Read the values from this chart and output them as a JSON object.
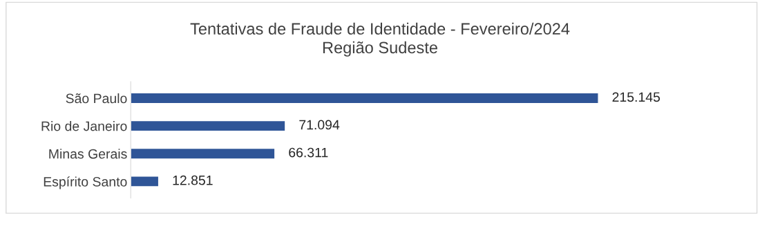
{
  "chart_data": {
    "type": "bar",
    "orientation": "horizontal",
    "title": "Tentativas de Fraude de Identidade - Fevereiro/2024\nRegião Sudeste",
    "categories": [
      "São Paulo",
      "Rio de Janeiro",
      "Minas Gerais",
      "Espírito Santo"
    ],
    "values": [
      215145,
      71094,
      66311,
      12851
    ],
    "value_labels": [
      "215.145",
      "71.094",
      "66.311",
      "12.851"
    ],
    "color": "#2f5597",
    "grid": false,
    "legend": false,
    "tick_labels": "y"
  }
}
